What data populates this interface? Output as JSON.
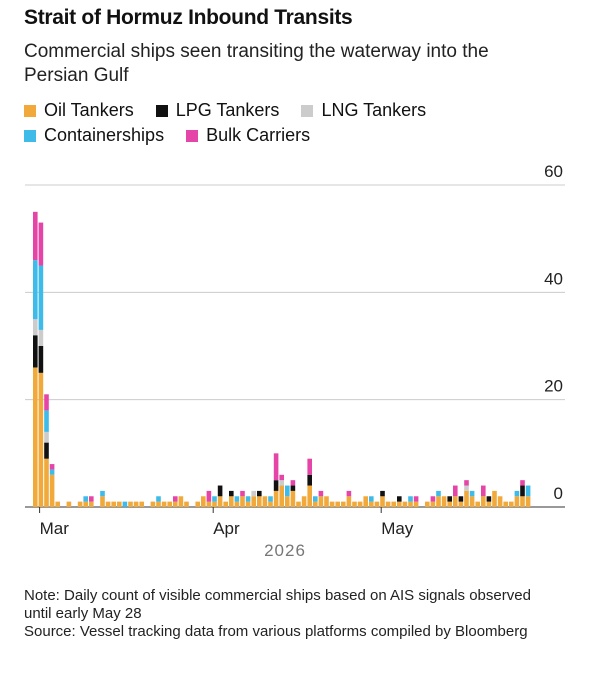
{
  "chart_data": {
    "type": "stacked-bar",
    "title": "Strait of Hormuz Inbound Transits",
    "subtitle": "Commercial ships seen transiting the waterway into the Persian Gulf",
    "x_label": "2026",
    "note": "Note: Daily count of visible commercial ships based on AIS signals observed until early May 28",
    "source": "Source: Vessel tracking data from various platforms compiled by Bloomberg",
    "categories": [
      null,
      "Mar",
      null,
      null,
      null,
      null,
      null,
      null,
      null,
      null,
      null,
      null,
      null,
      null,
      null,
      null,
      null,
      null,
      null,
      null,
      null,
      null,
      null,
      null,
      null,
      null,
      null,
      null,
      null,
      null,
      null,
      null,
      "Apr",
      null,
      null,
      null,
      null,
      null,
      null,
      null,
      null,
      null,
      null,
      null,
      null,
      null,
      null,
      null,
      null,
      null,
      null,
      null,
      null,
      null,
      null,
      null,
      null,
      null,
      null,
      null,
      null,
      null,
      "May",
      null,
      null,
      null,
      null,
      null,
      null,
      null,
      null,
      null,
      null,
      null,
      null,
      null,
      null,
      null,
      null,
      null,
      null,
      null,
      null,
      null,
      null,
      null,
      null,
      null,
      null
    ],
    "ylim": [
      0,
      60
    ],
    "yticks": [
      0,
      20,
      40,
      60
    ],
    "grid": true,
    "series": [
      {
        "name": "Oil Tankers",
        "color": "#f2a93b",
        "values": [
          26,
          25,
          9,
          6,
          1,
          0,
          1,
          0,
          1,
          1,
          1,
          0,
          2,
          1,
          1,
          1,
          0,
          1,
          1,
          1,
          0,
          1,
          1,
          1,
          1,
          1,
          2,
          1,
          0,
          1,
          2,
          1,
          1,
          2,
          1,
          2,
          1,
          2,
          1,
          2,
          2,
          2,
          1,
          3,
          4,
          2,
          3,
          1,
          2,
          4,
          1,
          2,
          2,
          1,
          1,
          1,
          2,
          1,
          1,
          2,
          1,
          1,
          2,
          1,
          1,
          1,
          1,
          1,
          1,
          0,
          1,
          1,
          2,
          2,
          1,
          2,
          1,
          3,
          2,
          1,
          2,
          1,
          3,
          2,
          1,
          1,
          2,
          2,
          2
        ]
      },
      {
        "name": "LPG Tankers",
        "color": "#111111",
        "values": [
          6,
          5,
          3,
          0,
          0,
          0,
          0,
          0,
          0,
          0,
          0,
          0,
          0,
          0,
          0,
          0,
          0,
          0,
          0,
          0,
          0,
          0,
          0,
          0,
          0,
          0,
          0,
          0,
          0,
          0,
          0,
          0,
          0,
          2,
          0,
          1,
          0,
          0,
          0,
          0,
          1,
          0,
          0,
          2,
          0,
          0,
          1,
          0,
          0,
          2,
          0,
          0,
          0,
          0,
          0,
          0,
          0,
          0,
          0,
          0,
          0,
          0,
          1,
          0,
          0,
          1,
          0,
          0,
          0,
          0,
          0,
          0,
          0,
          0,
          1,
          0,
          1,
          0,
          0,
          0,
          0,
          1,
          0,
          0,
          0,
          0,
          0,
          2,
          0
        ]
      },
      {
        "name": "LNG Tankers",
        "color": "#cccccc",
        "values": [
          3,
          3,
          2,
          0,
          0,
          0,
          0,
          0,
          0,
          0,
          0,
          0,
          0,
          0,
          0,
          0,
          0,
          0,
          0,
          0,
          0,
          0,
          0,
          0,
          0,
          0,
          0,
          0,
          0,
          0,
          0,
          0,
          0,
          0,
          0,
          0,
          0,
          0,
          0,
          1,
          0,
          0,
          0,
          0,
          1,
          0,
          0,
          0,
          0,
          0,
          0,
          0,
          0,
          0,
          0,
          0,
          0,
          0,
          0,
          0,
          0,
          0,
          0,
          0,
          0,
          0,
          0,
          0,
          0,
          0,
          0,
          0,
          0,
          0,
          0,
          0,
          0,
          1,
          0,
          0,
          0,
          0,
          0,
          0,
          0,
          0,
          0,
          0,
          0
        ]
      },
      {
        "name": "Containerships",
        "color": "#3ebbe8",
        "values": [
          11,
          12,
          4,
          1,
          0,
          0,
          0,
          0,
          0,
          1,
          0,
          0,
          1,
          0,
          0,
          0,
          1,
          0,
          0,
          0,
          0,
          0,
          1,
          0,
          0,
          0,
          0,
          0,
          0,
          0,
          0,
          0,
          1,
          0,
          0,
          0,
          1,
          0,
          1,
          0,
          0,
          0,
          1,
          0,
          0,
          2,
          0,
          0,
          0,
          0,
          1,
          0,
          0,
          0,
          0,
          0,
          0,
          0,
          0,
          0,
          1,
          0,
          0,
          0,
          0,
          0,
          0,
          1,
          0,
          0,
          0,
          0,
          1,
          0,
          0,
          0,
          0,
          0,
          1,
          0,
          0,
          0,
          0,
          0,
          0,
          0,
          1,
          0,
          2
        ]
      },
      {
        "name": "Bulk Carriers",
        "color": "#e645a8",
        "values": [
          9,
          8,
          3,
          1,
          0,
          0,
          0,
          0,
          0,
          0,
          1,
          0,
          0,
          0,
          0,
          0,
          0,
          0,
          0,
          0,
          0,
          0,
          0,
          0,
          0,
          1,
          0,
          0,
          0,
          0,
          0,
          2,
          0,
          0,
          0,
          0,
          0,
          1,
          0,
          0,
          0,
          0,
          0,
          5,
          1,
          0,
          1,
          0,
          0,
          3,
          0,
          1,
          0,
          0,
          0,
          0,
          1,
          0,
          0,
          0,
          0,
          0,
          0,
          0,
          0,
          0,
          0,
          0,
          1,
          0,
          0,
          1,
          0,
          0,
          0,
          2,
          0,
          1,
          0,
          0,
          2,
          0,
          0,
          0,
          0,
          0,
          0,
          1,
          0
        ]
      }
    ]
  }
}
